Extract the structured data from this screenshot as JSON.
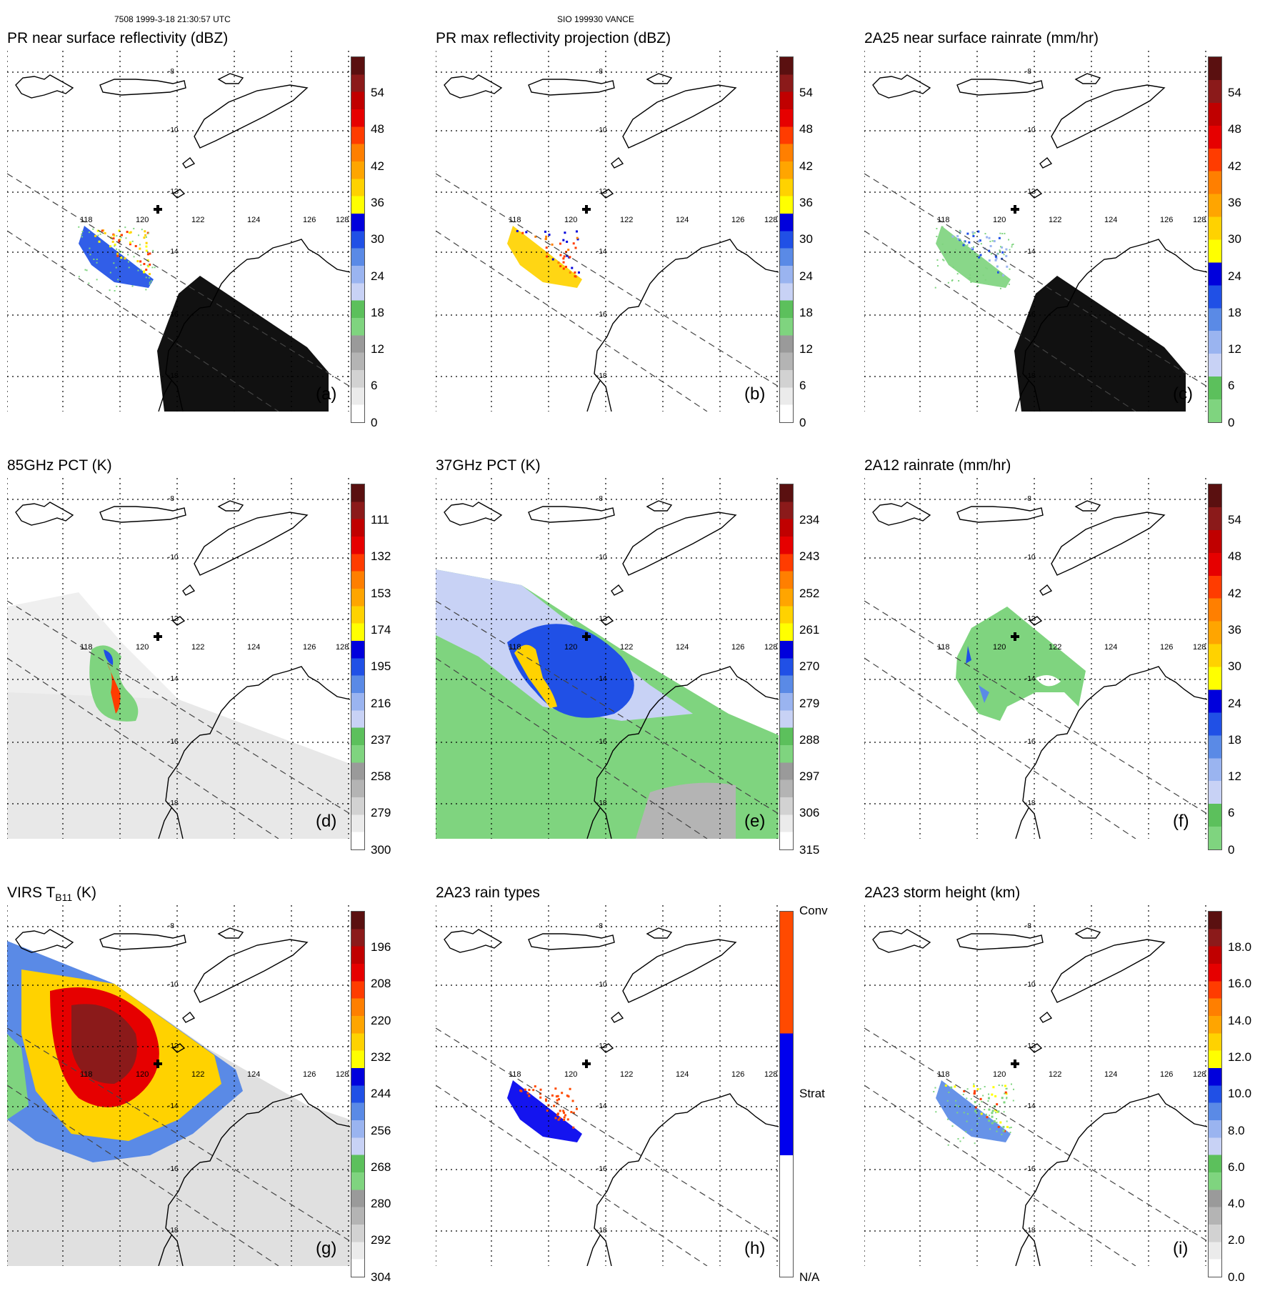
{
  "header": {
    "left": "7508 1999-3-18 21:30:57 UTC",
    "center": "SIO 199930 VANCE"
  },
  "map_labels": {
    "lon": [
      "118",
      "120",
      "122",
      "124",
      "126",
      "128"
    ],
    "lat": [
      "-8",
      "-10",
      "-12",
      "-14",
      "-16",
      "-18"
    ]
  },
  "panels": [
    {
      "id": "a",
      "title": "PR near surface reflectivity (dBZ)",
      "label": "(a)",
      "ticks": [
        "54",
        "48",
        "42",
        "36",
        "30",
        "24",
        "18",
        "12",
        "6",
        "0"
      ],
      "scale": "pr",
      "field": "pr_surface"
    },
    {
      "id": "b",
      "title": "PR max reflectivity projection (dBZ)",
      "label": "(b)",
      "ticks": [
        "54",
        "48",
        "42",
        "36",
        "30",
        "24",
        "18",
        "12",
        "6",
        "0"
      ],
      "scale": "pr",
      "field": "pr_max"
    },
    {
      "id": "c",
      "title": "2A25 near surface rainrate (mm/hr)",
      "label": "(c)",
      "ticks": [
        "54",
        "48",
        "42",
        "36",
        "30",
        "24",
        "18",
        "12",
        "6",
        "0"
      ],
      "scale": "rain",
      "field": "rain_2a25"
    },
    {
      "id": "d",
      "title": "85GHz PCT (K)",
      "label": "(d)",
      "ticks": [
        "111",
        "132",
        "153",
        "174",
        "195",
        "216",
        "237",
        "258",
        "279",
        "300"
      ],
      "scale": "pr",
      "field": "pct85"
    },
    {
      "id": "e",
      "title": "37GHz PCT (K)",
      "label": "(e)",
      "ticks": [
        "234",
        "243",
        "252",
        "261",
        "270",
        "279",
        "288",
        "297",
        "306",
        "315"
      ],
      "scale": "pr",
      "field": "pct37"
    },
    {
      "id": "f",
      "title": "2A12 rainrate (mm/hr)",
      "label": "(f)",
      "ticks": [
        "54",
        "48",
        "42",
        "36",
        "30",
        "24",
        "18",
        "12",
        "6",
        "0"
      ],
      "scale": "rain",
      "field": "rain_2a12"
    },
    {
      "id": "g",
      "title": "VIRS T",
      "title_sub": "B11",
      "title_end": " (K)",
      "label": "(g)",
      "ticks": [
        "196",
        "208",
        "220",
        "232",
        "244",
        "256",
        "268",
        "280",
        "292",
        "304"
      ],
      "scale": "pr",
      "field": "virs"
    },
    {
      "id": "h",
      "title": "2A23 rain types",
      "label": "(h)",
      "ticks": [
        "Conv",
        "Strat",
        "N/A"
      ],
      "scale": "type",
      "field": "raintype"
    },
    {
      "id": "i",
      "title": "2A23 storm height (km)",
      "label": "(i)",
      "ticks": [
        "18.0",
        "16.0",
        "14.0",
        "12.0",
        "10.0",
        "8.0",
        "6.0",
        "4.0",
        "2.0",
        "0.0"
      ],
      "scale": "pr",
      "field": "height"
    }
  ],
  "colors": {
    "pr_scale": [
      "#ffffff",
      "#ebebeb",
      "#d2d2d2",
      "#b4b4b4",
      "#9a9a9a",
      "#7fd47f",
      "#5cc05c",
      "#c8d2f5",
      "#9ab4f0",
      "#5a8ae6",
      "#2050e6",
      "#0000dc",
      "#ffff00",
      "#ffd200",
      "#ffa500",
      "#ff7f00",
      "#ff3c00",
      "#e60000",
      "#c00000",
      "#8b1a1a",
      "#5a1010"
    ],
    "rain_scale": [
      "#7fd47f",
      "#5cc05c",
      "#c8d2f5",
      "#9ab4f0",
      "#5a8ae6",
      "#2050e6",
      "#0000dc",
      "#ffff00",
      "#ffd200",
      "#ffa500",
      "#ff7f00",
      "#ff3c00",
      "#e60000",
      "#c00000",
      "#8b1a1a",
      "#5a1010"
    ],
    "type_scale": [
      "#ffffff",
      "#0000ee",
      "#ff4a00"
    ],
    "coast": "#000000",
    "track": "#444444"
  }
}
